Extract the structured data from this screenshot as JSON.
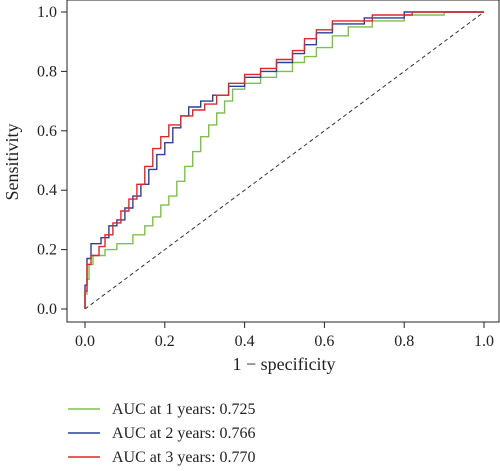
{
  "chart_data": {
    "type": "line",
    "xlabel": "1 − specificity",
    "ylabel": "Sensitivity",
    "xlim": [
      0,
      1
    ],
    "ylim": [
      0,
      1
    ],
    "xticks": [
      "0.0",
      "0.2",
      "0.4",
      "0.6",
      "0.8",
      "1.0"
    ],
    "yticks": [
      "0.0",
      "0.2",
      "0.4",
      "0.6",
      "0.8",
      "1.0"
    ],
    "grid": false,
    "legend_position": "bottom-left",
    "reference_line": {
      "x": [
        0,
        1
      ],
      "y": [
        0,
        1
      ],
      "style": "dashed",
      "color": "#333333"
    },
    "series": [
      {
        "name": "AUC at 1 years: 0.725",
        "color": "#7dc243",
        "points": [
          [
            0,
            0
          ],
          [
            0,
            0.05
          ],
          [
            0.005,
            0.05
          ],
          [
            0.005,
            0.1
          ],
          [
            0.01,
            0.1
          ],
          [
            0.01,
            0.15
          ],
          [
            0.02,
            0.15
          ],
          [
            0.02,
            0.18
          ],
          [
            0.05,
            0.18
          ],
          [
            0.05,
            0.2
          ],
          [
            0.08,
            0.2
          ],
          [
            0.08,
            0.22
          ],
          [
            0.12,
            0.22
          ],
          [
            0.12,
            0.25
          ],
          [
            0.15,
            0.25
          ],
          [
            0.15,
            0.28
          ],
          [
            0.17,
            0.28
          ],
          [
            0.17,
            0.31
          ],
          [
            0.19,
            0.31
          ],
          [
            0.19,
            0.35
          ],
          [
            0.21,
            0.35
          ],
          [
            0.21,
            0.38
          ],
          [
            0.23,
            0.38
          ],
          [
            0.23,
            0.43
          ],
          [
            0.25,
            0.43
          ],
          [
            0.25,
            0.48
          ],
          [
            0.27,
            0.48
          ],
          [
            0.27,
            0.53
          ],
          [
            0.29,
            0.53
          ],
          [
            0.29,
            0.58
          ],
          [
            0.31,
            0.58
          ],
          [
            0.31,
            0.62
          ],
          [
            0.33,
            0.62
          ],
          [
            0.33,
            0.66
          ],
          [
            0.35,
            0.66
          ],
          [
            0.35,
            0.7
          ],
          [
            0.37,
            0.7
          ],
          [
            0.37,
            0.74
          ],
          [
            0.4,
            0.74
          ],
          [
            0.4,
            0.76
          ],
          [
            0.44,
            0.76
          ],
          [
            0.44,
            0.78
          ],
          [
            0.48,
            0.78
          ],
          [
            0.48,
            0.8
          ],
          [
            0.52,
            0.8
          ],
          [
            0.52,
            0.83
          ],
          [
            0.55,
            0.83
          ],
          [
            0.55,
            0.85
          ],
          [
            0.58,
            0.85
          ],
          [
            0.58,
            0.88
          ],
          [
            0.62,
            0.88
          ],
          [
            0.62,
            0.92
          ],
          [
            0.66,
            0.92
          ],
          [
            0.66,
            0.95
          ],
          [
            0.72,
            0.95
          ],
          [
            0.72,
            0.97
          ],
          [
            0.8,
            0.97
          ],
          [
            0.8,
            0.99
          ],
          [
            0.9,
            0.99
          ],
          [
            0.9,
            1.0
          ],
          [
            1.0,
            1.0
          ]
        ]
      },
      {
        "name": "AUC at 2 years: 0.766",
        "color": "#2a3f9e",
        "points": [
          [
            0,
            0
          ],
          [
            0,
            0.08
          ],
          [
            0.005,
            0.08
          ],
          [
            0.005,
            0.17
          ],
          [
            0.015,
            0.17
          ],
          [
            0.015,
            0.22
          ],
          [
            0.04,
            0.22
          ],
          [
            0.04,
            0.24
          ],
          [
            0.06,
            0.24
          ],
          [
            0.06,
            0.28
          ],
          [
            0.08,
            0.28
          ],
          [
            0.08,
            0.3
          ],
          [
            0.1,
            0.3
          ],
          [
            0.1,
            0.34
          ],
          [
            0.12,
            0.34
          ],
          [
            0.12,
            0.38
          ],
          [
            0.14,
            0.38
          ],
          [
            0.14,
            0.42
          ],
          [
            0.16,
            0.42
          ],
          [
            0.16,
            0.47
          ],
          [
            0.18,
            0.47
          ],
          [
            0.18,
            0.52
          ],
          [
            0.2,
            0.52
          ],
          [
            0.2,
            0.56
          ],
          [
            0.22,
            0.56
          ],
          [
            0.22,
            0.61
          ],
          [
            0.24,
            0.61
          ],
          [
            0.24,
            0.65
          ],
          [
            0.26,
            0.65
          ],
          [
            0.26,
            0.68
          ],
          [
            0.29,
            0.68
          ],
          [
            0.29,
            0.7
          ],
          [
            0.32,
            0.7
          ],
          [
            0.32,
            0.72
          ],
          [
            0.36,
            0.72
          ],
          [
            0.36,
            0.75
          ],
          [
            0.4,
            0.75
          ],
          [
            0.4,
            0.78
          ],
          [
            0.44,
            0.78
          ],
          [
            0.44,
            0.8
          ],
          [
            0.48,
            0.8
          ],
          [
            0.48,
            0.83
          ],
          [
            0.52,
            0.83
          ],
          [
            0.52,
            0.86
          ],
          [
            0.55,
            0.86
          ],
          [
            0.55,
            0.89
          ],
          [
            0.58,
            0.89
          ],
          [
            0.58,
            0.93
          ],
          [
            0.62,
            0.93
          ],
          [
            0.62,
            0.96
          ],
          [
            0.7,
            0.96
          ],
          [
            0.7,
            0.98
          ],
          [
            0.8,
            0.98
          ],
          [
            0.8,
            1.0
          ],
          [
            1.0,
            1.0
          ]
        ]
      },
      {
        "name": "AUC at 3 years: 0.770",
        "color": "#e0262b",
        "points": [
          [
            0,
            0
          ],
          [
            0,
            0.06
          ],
          [
            0.005,
            0.06
          ],
          [
            0.005,
            0.15
          ],
          [
            0.015,
            0.15
          ],
          [
            0.015,
            0.18
          ],
          [
            0.035,
            0.18
          ],
          [
            0.035,
            0.21
          ],
          [
            0.05,
            0.21
          ],
          [
            0.05,
            0.25
          ],
          [
            0.07,
            0.25
          ],
          [
            0.07,
            0.29
          ],
          [
            0.09,
            0.29
          ],
          [
            0.09,
            0.33
          ],
          [
            0.11,
            0.33
          ],
          [
            0.11,
            0.37
          ],
          [
            0.13,
            0.37
          ],
          [
            0.13,
            0.42
          ],
          [
            0.15,
            0.42
          ],
          [
            0.15,
            0.48
          ],
          [
            0.17,
            0.48
          ],
          [
            0.17,
            0.54
          ],
          [
            0.19,
            0.54
          ],
          [
            0.19,
            0.58
          ],
          [
            0.21,
            0.58
          ],
          [
            0.21,
            0.62
          ],
          [
            0.24,
            0.62
          ],
          [
            0.24,
            0.65
          ],
          [
            0.27,
            0.65
          ],
          [
            0.27,
            0.67
          ],
          [
            0.3,
            0.67
          ],
          [
            0.3,
            0.69
          ],
          [
            0.33,
            0.69
          ],
          [
            0.33,
            0.72
          ],
          [
            0.36,
            0.72
          ],
          [
            0.36,
            0.76
          ],
          [
            0.4,
            0.76
          ],
          [
            0.4,
            0.79
          ],
          [
            0.44,
            0.79
          ],
          [
            0.44,
            0.81
          ],
          [
            0.48,
            0.81
          ],
          [
            0.48,
            0.84
          ],
          [
            0.52,
            0.84
          ],
          [
            0.52,
            0.87
          ],
          [
            0.55,
            0.87
          ],
          [
            0.55,
            0.91
          ],
          [
            0.58,
            0.91
          ],
          [
            0.58,
            0.94
          ],
          [
            0.62,
            0.94
          ],
          [
            0.62,
            0.97
          ],
          [
            0.72,
            0.97
          ],
          [
            0.72,
            0.99
          ],
          [
            0.82,
            0.99
          ],
          [
            0.82,
            1.0
          ],
          [
            1.0,
            1.0
          ]
        ]
      }
    ]
  }
}
